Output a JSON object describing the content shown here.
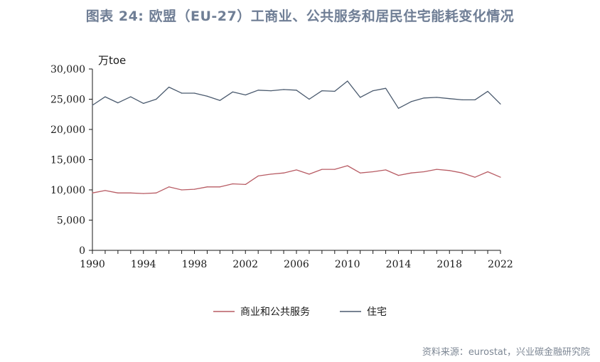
{
  "title": "图表 24: 欧盟（EU-27）工商业、公共服务和居民住宅能耗变化情况",
  "source": "资料来源：eurostat，兴业碳金融研究院",
  "chart_data": {
    "type": "line",
    "unit_label": "万toe",
    "xlabel": "",
    "ylabel": "",
    "ylim": [
      0,
      30000
    ],
    "y_ticks": [
      "0",
      "5,000",
      "10,000",
      "15,000",
      "20,000",
      "25,000",
      "30,000"
    ],
    "y_tick_values": [
      0,
      5000,
      10000,
      15000,
      20000,
      25000,
      30000
    ],
    "xlim": [
      1990,
      2022
    ],
    "x_ticks": [
      "1990",
      "1994",
      "1998",
      "2002",
      "2006",
      "2010",
      "2014",
      "2018",
      "2022"
    ],
    "x_tick_values": [
      1990,
      1994,
      1998,
      2002,
      2006,
      2010,
      2014,
      2018,
      2022
    ],
    "x": [
      1990,
      1991,
      1992,
      1993,
      1994,
      1995,
      1996,
      1997,
      1998,
      1999,
      2000,
      2001,
      2002,
      2003,
      2004,
      2005,
      2006,
      2007,
      2008,
      2009,
      2010,
      2011,
      2012,
      2013,
      2014,
      2015,
      2016,
      2017,
      2018,
      2019,
      2020,
      2021,
      2022
    ],
    "grid": false,
    "legend_position": "bottom",
    "series": [
      {
        "name": "商业和公共服务",
        "color": "#b85c64",
        "values": [
          9500,
          9900,
          9500,
          9500,
          9400,
          9500,
          10500,
          10000,
          10100,
          10500,
          10500,
          11000,
          10900,
          12300,
          12600,
          12800,
          13300,
          12600,
          13400,
          13400,
          14000,
          12800,
          13000,
          13300,
          12400,
          12800,
          13000,
          13400,
          13200,
          12800,
          12100,
          13000,
          12100
        ]
      },
      {
        "name": "住宅",
        "color": "#4a5a6e",
        "values": [
          24000,
          25400,
          24400,
          25400,
          24300,
          25000,
          27000,
          26000,
          26000,
          25500,
          24800,
          26200,
          25700,
          26500,
          26400,
          26600,
          26500,
          25000,
          26400,
          26300,
          28000,
          25300,
          26400,
          26800,
          23500,
          24600,
          25200,
          25300,
          25100,
          24900,
          24900,
          26300,
          24200
        ]
      }
    ]
  }
}
